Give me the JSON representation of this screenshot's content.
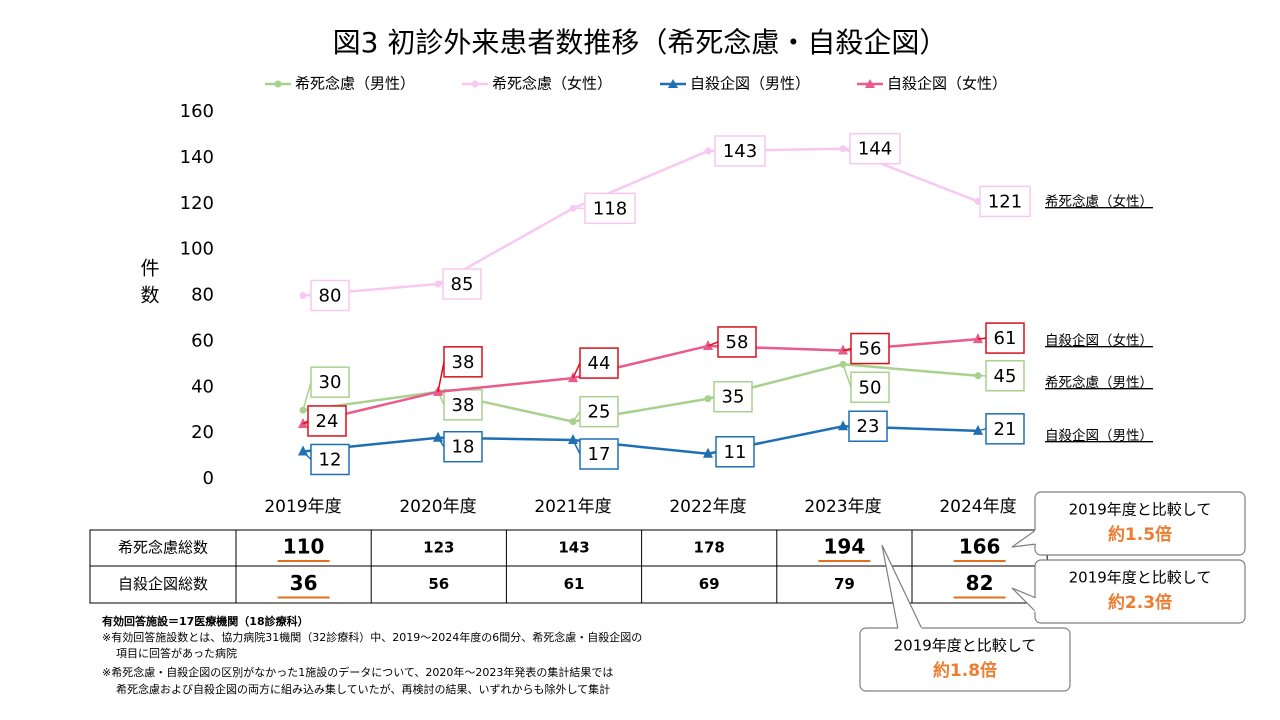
{
  "chart_data": {
    "type": "line",
    "title": "図3 初診外来患者数推移（希死念慮・自殺企図）",
    "y_label": "件数",
    "categories": [
      "2019年度",
      "2020年度",
      "2021年度",
      "2022年度",
      "2023年度",
      "2024年度"
    ],
    "series": [
      {
        "name": "希死念慮（男性）",
        "color": "#a9d18e",
        "marker": "circle",
        "values": [
          30,
          38,
          25,
          35,
          50,
          45
        ]
      },
      {
        "name": "希死念慮（女性）",
        "color": "#f9c8f2",
        "marker": "circle",
        "values": [
          80,
          85,
          118,
          143,
          144,
          121
        ]
      },
      {
        "name": "自殺企図（男性）",
        "color": "#1f6fb5",
        "marker": "triangle",
        "values": [
          12,
          18,
          17,
          11,
          23,
          21
        ]
      },
      {
        "name": "自殺企図（女性）",
        "color": "#ea5a8a",
        "marker": "triangle",
        "values": [
          24,
          38,
          44,
          58,
          56,
          61
        ]
      }
    ],
    "ylim": [
      0,
      160
    ],
    "yticks": [
      0,
      20,
      40,
      60,
      80,
      100,
      120,
      140,
      160
    ],
    "grid": false,
    "legend": "top"
  },
  "table": {
    "rows": [
      {
        "label": "希死念慮総数",
        "values": [
          110,
          123,
          143,
          178,
          194,
          166
        ],
        "underlined": [
          0,
          4,
          5
        ]
      },
      {
        "label": "自殺企図総数",
        "values": [
          36,
          56,
          61,
          69,
          79,
          82
        ],
        "underlined": [
          0,
          5
        ]
      }
    ]
  },
  "callouts": [
    {
      "text": "2019年度と比較して",
      "ratio": "約1.5倍"
    },
    {
      "text": "2019年度と比較して",
      "ratio": "約2.3倍"
    },
    {
      "text": "2019年度と比較して",
      "ratio": "約1.8倍"
    }
  ],
  "notes": [
    "有効回答施設＝17医療機関（18診療科）",
    "※有効回答施設数とは、協力病院31機関（32診療科）中、2019～2024年度の6間分、希死念慮・自殺企図の",
    "項目に回答があった病院",
    "※希死念慮・自殺企図の区別がなかった1施設のデータについて、2020年～2023年発表の集計結果では",
    "希死念慮および自殺企図の両方に組み込み集していたが、再検討の結果、いずれからも除外して集計"
  ]
}
